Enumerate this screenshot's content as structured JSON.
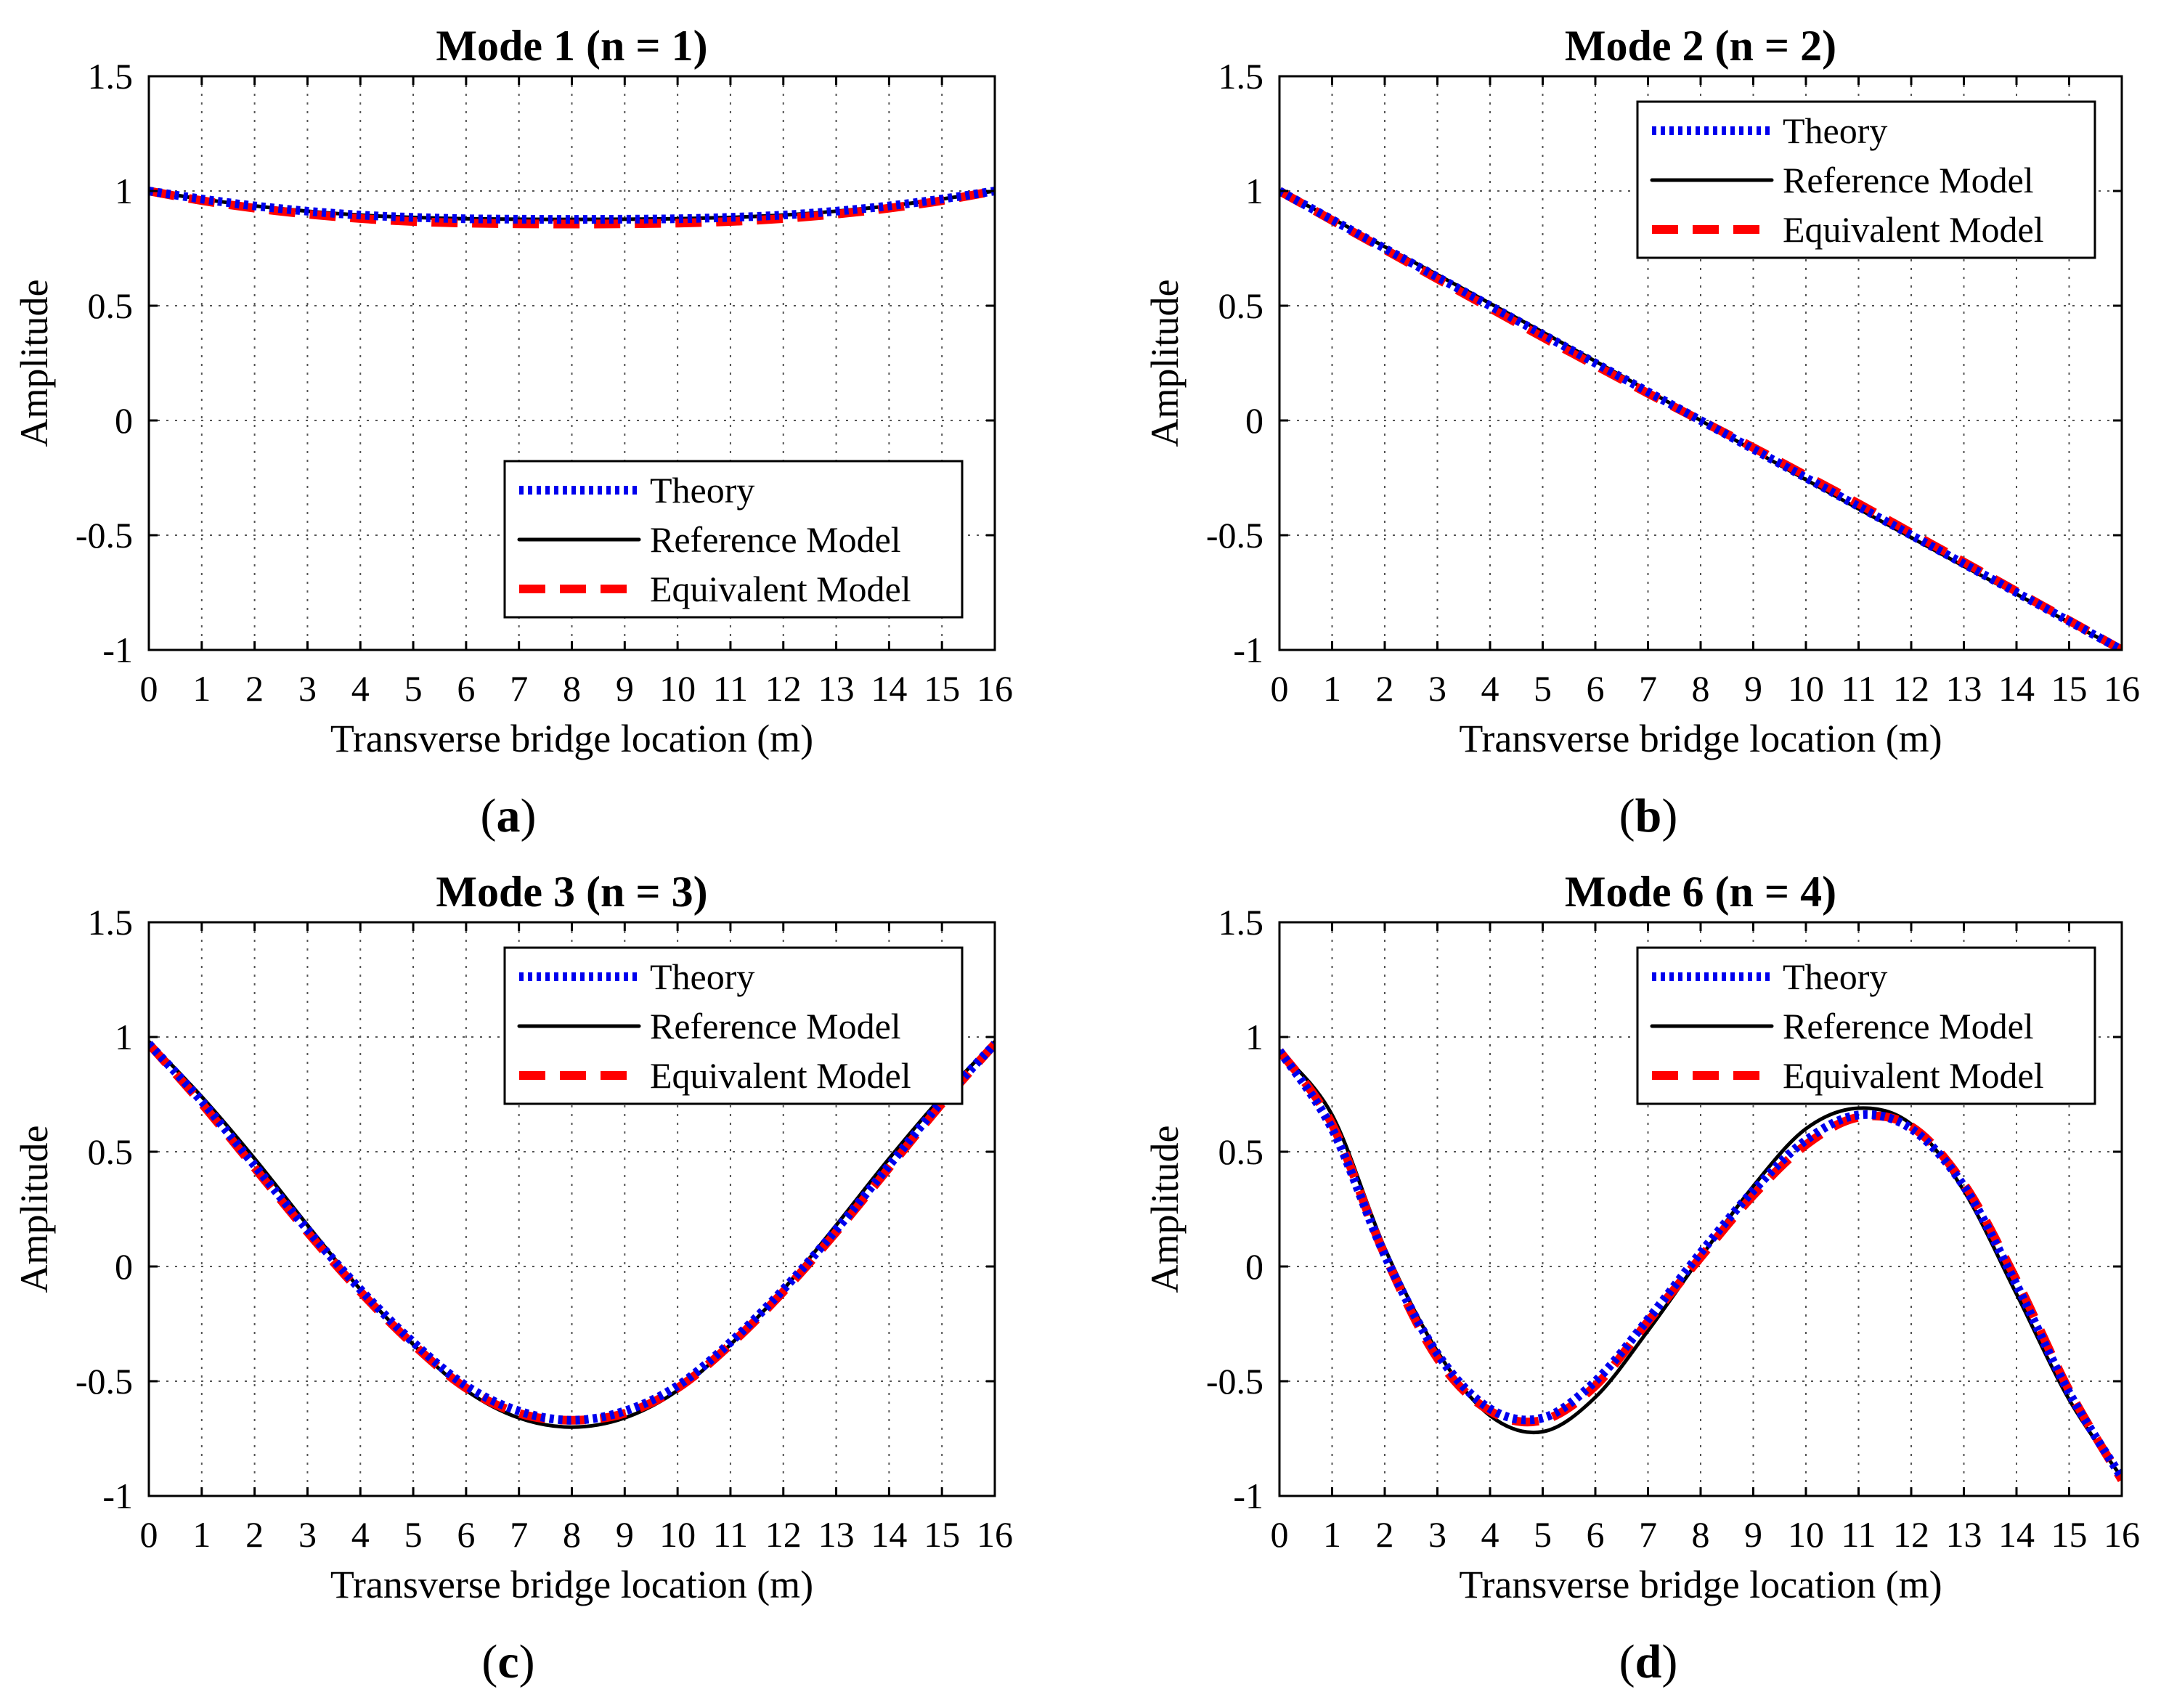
{
  "chart_data": [
    {
      "type": "line",
      "panel_label": "a",
      "title": "Mode 1 (n = 1)",
      "xlabel": "Transverse bridge location (m)",
      "ylabel": "Amplitude",
      "xlim": [
        0,
        16
      ],
      "ylim": [
        -1,
        1.5
      ],
      "xticks": [
        "0",
        "1",
        "2",
        "3",
        "4",
        "5",
        "6",
        "7",
        "8",
        "9",
        "10",
        "11",
        "12",
        "13",
        "14",
        "15",
        "16"
      ],
      "yticks": [
        "-1",
        "-0.5",
        "0",
        "0.5",
        "1",
        "1.5"
      ],
      "grid": true,
      "legend_position": "lower-right",
      "x": [
        0,
        1,
        2,
        3,
        4,
        5,
        6,
        7,
        8,
        9,
        10,
        11,
        12,
        13,
        14,
        15,
        16
      ],
      "series": [
        {
          "name": "Theory",
          "color": "#0000ee",
          "style": "dotted",
          "values": [
            1.0,
            0.965,
            0.935,
            0.912,
            0.895,
            0.885,
            0.879,
            0.877,
            0.876,
            0.877,
            0.879,
            0.885,
            0.895,
            0.912,
            0.935,
            0.965,
            1.0
          ]
        },
        {
          "name": "Reference Model",
          "color": "#000000",
          "style": "solid",
          "values": [
            1.0,
            0.965,
            0.935,
            0.912,
            0.895,
            0.885,
            0.879,
            0.877,
            0.876,
            0.877,
            0.879,
            0.885,
            0.895,
            0.912,
            0.935,
            0.965,
            1.0
          ]
        },
        {
          "name": "Equivalent Model",
          "color": "#ff0000",
          "style": "dashed",
          "values": [
            1.0,
            0.958,
            0.925,
            0.899,
            0.88,
            0.867,
            0.86,
            0.857,
            0.856,
            0.857,
            0.86,
            0.867,
            0.88,
            0.899,
            0.925,
            0.958,
            1.0
          ]
        }
      ]
    },
    {
      "type": "line",
      "panel_label": "b",
      "title": "Mode 2 (n = 2)",
      "xlabel": "Transverse bridge location (m)",
      "ylabel": "Amplitude",
      "xlim": [
        0,
        16
      ],
      "ylim": [
        -1,
        1.5
      ],
      "xticks": [
        "0",
        "1",
        "2",
        "3",
        "4",
        "5",
        "6",
        "7",
        "8",
        "9",
        "10",
        "11",
        "12",
        "13",
        "14",
        "15",
        "16"
      ],
      "yticks": [
        "-1",
        "-0.5",
        "0",
        "0.5",
        "1",
        "1.5"
      ],
      "grid": true,
      "legend_position": "top-right",
      "x": [
        0,
        1,
        2,
        3,
        4,
        5,
        6,
        7,
        8,
        9,
        10,
        11,
        12,
        13,
        14,
        15,
        16
      ],
      "series": [
        {
          "name": "Theory",
          "color": "#0000ee",
          "style": "dotted",
          "values": [
            1.0,
            0.875,
            0.75,
            0.625,
            0.5,
            0.375,
            0.25,
            0.125,
            0.0,
            -0.125,
            -0.25,
            -0.375,
            -0.5,
            -0.625,
            -0.75,
            -0.875,
            -1.0
          ]
        },
        {
          "name": "Reference Model",
          "color": "#000000",
          "style": "solid",
          "values": [
            1.0,
            0.88,
            0.757,
            0.635,
            0.51,
            0.385,
            0.258,
            0.13,
            0.0,
            -0.13,
            -0.258,
            -0.385,
            -0.51,
            -0.635,
            -0.757,
            -0.88,
            -1.0
          ]
        },
        {
          "name": "Equivalent Model",
          "color": "#ff0000",
          "style": "dashed",
          "values": [
            1.0,
            0.872,
            0.745,
            0.617,
            0.49,
            0.363,
            0.24,
            0.118,
            0.0,
            -0.118,
            -0.24,
            -0.363,
            -0.49,
            -0.617,
            -0.745,
            -0.872,
            -1.0
          ]
        }
      ]
    },
    {
      "type": "line",
      "panel_label": "c",
      "title": "Mode 3 (n = 3)",
      "xlabel": "Transverse bridge location (m)",
      "ylabel": "Amplitude",
      "xlim": [
        0,
        16
      ],
      "ylim": [
        -1,
        1.5
      ],
      "xticks": [
        "0",
        "1",
        "2",
        "3",
        "4",
        "5",
        "6",
        "7",
        "8",
        "9",
        "10",
        "11",
        "12",
        "13",
        "14",
        "15",
        "16"
      ],
      "yticks": [
        "-1",
        "-0.5",
        "0",
        "0.5",
        "1",
        "1.5"
      ],
      "grid": true,
      "legend_position": "top-right",
      "x": [
        0,
        1,
        2,
        3,
        4,
        5,
        6,
        7,
        8,
        9,
        10,
        11,
        12,
        13,
        14,
        15,
        16
      ],
      "series": [
        {
          "name": "Theory",
          "color": "#0000ee",
          "style": "dotted",
          "values": [
            0.97,
            0.72,
            0.44,
            0.16,
            -0.1,
            -0.33,
            -0.52,
            -0.63,
            -0.67,
            -0.63,
            -0.52,
            -0.33,
            -0.1,
            0.16,
            0.44,
            0.72,
            0.97
          ]
        },
        {
          "name": "Reference Model",
          "color": "#000000",
          "style": "solid",
          "values": [
            0.98,
            0.74,
            0.47,
            0.18,
            -0.1,
            -0.34,
            -0.54,
            -0.66,
            -0.7,
            -0.66,
            -0.54,
            -0.34,
            -0.1,
            0.18,
            0.47,
            0.74,
            0.98
          ]
        },
        {
          "name": "Equivalent Model",
          "color": "#ff0000",
          "style": "dashed",
          "values": [
            0.97,
            0.71,
            0.43,
            0.15,
            -0.11,
            -0.34,
            -0.53,
            -0.64,
            -0.67,
            -0.64,
            -0.53,
            -0.34,
            -0.11,
            0.15,
            0.43,
            0.71,
            0.97
          ]
        }
      ]
    },
    {
      "type": "line",
      "panel_label": "d",
      "title": "Mode 6 (n = 4)",
      "xlabel": "Transverse bridge location (m)",
      "ylabel": "Amplitude",
      "xlim": [
        0,
        16
      ],
      "ylim": [
        -1,
        1.5
      ],
      "xticks": [
        "0",
        "1",
        "2",
        "3",
        "4",
        "5",
        "6",
        "7",
        "8",
        "9",
        "10",
        "11",
        "12",
        "13",
        "14",
        "15",
        "16"
      ],
      "yticks": [
        "-1",
        "-0.5",
        "0",
        "0.5",
        "1",
        "1.5"
      ],
      "grid": true,
      "legend_position": "top-right",
      "x": [
        0,
        1,
        2,
        3,
        4,
        5,
        6,
        7,
        8,
        9,
        10,
        11,
        12,
        13,
        14,
        15,
        16
      ],
      "series": [
        {
          "name": "Theory",
          "color": "#0000ee",
          "style": "dotted",
          "values": [
            0.94,
            0.6,
            0.05,
            -0.38,
            -0.62,
            -0.66,
            -0.5,
            -0.23,
            0.06,
            0.33,
            0.55,
            0.66,
            0.6,
            0.35,
            -0.08,
            -0.55,
            -0.92
          ]
        },
        {
          "name": "Reference Model",
          "color": "#000000",
          "style": "solid",
          "values": [
            0.94,
            0.66,
            0.08,
            -0.37,
            -0.65,
            -0.72,
            -0.57,
            -0.28,
            0.04,
            0.35,
            0.6,
            0.69,
            0.62,
            0.33,
            -0.12,
            -0.58,
            -0.92
          ]
        },
        {
          "name": "Equivalent Model",
          "color": "#ff0000",
          "style": "dashed",
          "values": [
            0.94,
            0.62,
            0.05,
            -0.4,
            -0.63,
            -0.67,
            -0.52,
            -0.24,
            0.04,
            0.31,
            0.53,
            0.65,
            0.61,
            0.36,
            -0.06,
            -0.54,
            -0.93
          ]
        }
      ]
    }
  ]
}
